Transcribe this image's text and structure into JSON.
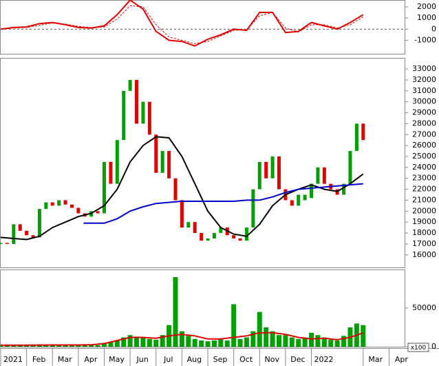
{
  "chart_data": [
    {
      "type": "line",
      "x": [
        0,
        0.5,
        1,
        1.5,
        2,
        2.5,
        3,
        3.5,
        4,
        4.5,
        5,
        5.5,
        6,
        6.5,
        7,
        7.5,
        8,
        8.5,
        9,
        9.5,
        10,
        10.5,
        11,
        11.5,
        12,
        12.5,
        13,
        13.5,
        14
      ],
      "series": [
        {
          "color": "#e00000",
          "dash": false,
          "values": [
            0,
            150,
            200,
            500,
            600,
            400,
            150,
            100,
            300,
            1300,
            2600,
            1800,
            -200,
            -1000,
            -1100,
            -1500,
            -900,
            -500,
            0,
            -100,
            1500,
            1500,
            -300,
            -200,
            600,
            300,
            0,
            600,
            1300
          ]
        },
        {
          "color": "#e00000",
          "dash": true,
          "values": [
            0,
            100,
            150,
            350,
            550,
            450,
            250,
            150,
            200,
            900,
            2100,
            2000,
            400,
            -700,
            -1000,
            -1300,
            -1100,
            -600,
            -100,
            -50,
            1200,
            1500,
            100,
            -250,
            400,
            400,
            100,
            400,
            1100
          ]
        }
      ],
      "xlim": [
        0,
        15.6
      ],
      "ylim": [
        -2200,
        2550
      ],
      "yticks": [
        -1000,
        0,
        1000,
        2000
      ],
      "zero_line": true
    },
    {
      "type": "candlestick",
      "x": [
        0,
        0.25,
        0.5,
        0.75,
        1,
        1.25,
        1.5,
        1.75,
        2,
        2.25,
        2.5,
        2.75,
        3,
        3.25,
        3.5,
        3.75,
        4,
        4.25,
        4.5,
        4.75,
        5,
        5.25,
        5.5,
        5.75,
        6,
        6.25,
        6.5,
        6.75,
        7,
        7.25,
        7.5,
        7.75,
        8,
        8.25,
        8.5,
        8.75,
        9,
        9.25,
        9.5,
        9.75,
        10,
        10.25,
        10.5,
        10.75,
        11,
        11.25,
        11.5,
        11.75,
        12,
        12.25,
        12.5,
        12.75,
        13,
        13.25,
        13.5,
        13.75,
        14
      ],
      "open": [
        17000,
        17100,
        17000,
        18800,
        18200,
        17800,
        17600,
        20200,
        20800,
        20500,
        21000,
        20600,
        20300,
        19800,
        19500,
        20000,
        19800,
        24500,
        22500,
        26500,
        31000,
        32000,
        28000,
        30000,
        27000,
        23500,
        25500,
        23000,
        21000,
        18500,
        19000,
        18000,
        17300,
        17500,
        18000,
        18500,
        17800,
        17500,
        17300,
        18500,
        22000,
        24500,
        23000,
        25000,
        22000,
        21000,
        20500,
        21000,
        21200,
        22500,
        24000,
        22500,
        22000,
        21500,
        22500,
        25500,
        28000
      ],
      "close": [
        17100,
        17000,
        18800,
        18200,
        17800,
        17600,
        20200,
        20800,
        20500,
        21000,
        20600,
        20300,
        19800,
        19500,
        20000,
        19800,
        24500,
        22500,
        26500,
        31000,
        32000,
        28000,
        30000,
        27000,
        23500,
        25500,
        23000,
        21000,
        18500,
        19000,
        18000,
        17300,
        17500,
        18000,
        18500,
        17800,
        17500,
        17300,
        18500,
        22000,
        24500,
        23000,
        25000,
        22000,
        21000,
        20500,
        21500,
        21500,
        22500,
        24000,
        22500,
        22000,
        21500,
        22500,
        25500,
        28000,
        26500
      ],
      "up_color": "#00a000",
      "down_color": "#e00000",
      "series": [
        {
          "color": "#000000",
          "x": [
            0,
            0.5,
            1,
            1.5,
            2,
            2.5,
            3,
            3.5,
            4,
            4.5,
            5,
            5.5,
            6,
            6.5,
            7,
            7.5,
            8,
            8.5,
            9,
            9.5,
            10,
            10.5,
            11,
            11.5,
            12,
            12.5,
            13,
            13.5,
            14
          ],
          "values": [
            17600,
            17500,
            17400,
            17700,
            18500,
            19000,
            19500,
            19800,
            20500,
            22000,
            24500,
            26000,
            26800,
            26700,
            25000,
            22500,
            20000,
            18500,
            17900,
            17700,
            18800,
            20500,
            21500,
            22000,
            22400,
            22000,
            21800,
            22500,
            23400
          ]
        },
        {
          "color": "#0000cc",
          "x": [
            3.2,
            4,
            4.5,
            5,
            5.5,
            6,
            6.5,
            7,
            7.5,
            8,
            8.5,
            9,
            9.5,
            10,
            10.5,
            11,
            11.5,
            12,
            12.5,
            13,
            14
          ],
          "values": [
            18900,
            18900,
            19300,
            20000,
            20400,
            20700,
            20800,
            20900,
            20900,
            20900,
            20900,
            20900,
            21000,
            21000,
            21300,
            21700,
            22000,
            22100,
            22200,
            22300,
            22500
          ]
        }
      ],
      "xlim": [
        0,
        15.6
      ],
      "ylim": [
        14850,
        33950
      ],
      "yticks": [
        16000,
        17000,
        18000,
        19000,
        20000,
        21000,
        22000,
        23000,
        24000,
        25000,
        26000,
        27000,
        28000,
        29000,
        30000,
        31000,
        32000,
        33000
      ]
    },
    {
      "type": "bar",
      "x": [
        0,
        0.25,
        0.5,
        0.75,
        1,
        1.25,
        1.5,
        1.75,
        2,
        2.25,
        2.5,
        2.75,
        3,
        3.25,
        3.5,
        3.75,
        4,
        4.25,
        4.5,
        4.75,
        5,
        5.25,
        5.5,
        5.75,
        6,
        6.25,
        6.5,
        6.75,
        7,
        7.25,
        7.5,
        7.75,
        8,
        8.25,
        8.5,
        8.75,
        9,
        9.25,
        9.5,
        9.75,
        10,
        10.25,
        10.5,
        10.75,
        11,
        11.25,
        11.5,
        11.75,
        12,
        12.25,
        12.5,
        12.75,
        13,
        13.25,
        13.5,
        13.75,
        14
      ],
      "values": [
        2000,
        2000,
        2500,
        2000,
        2000,
        2000,
        3000,
        2500,
        2500,
        2500,
        2000,
        2000,
        2000,
        2000,
        2000,
        2000,
        5000,
        6000,
        8000,
        12000,
        15000,
        13000,
        12000,
        10000,
        9000,
        15000,
        28000,
        90000,
        20000,
        14000,
        10000,
        8000,
        7000,
        8000,
        10000,
        8000,
        55000,
        10000,
        12000,
        20000,
        45000,
        25000,
        20000,
        15000,
        15000,
        12000,
        10000,
        12000,
        18000,
        15000,
        12000,
        9000,
        8000,
        14000,
        25000,
        30000,
        28000
      ],
      "color": "#00a000",
      "series": [
        {
          "color": "#e00000",
          "x": [
            0,
            0.5,
            1,
            1.5,
            2,
            2.5,
            3,
            3.5,
            4,
            4.5,
            5,
            5.5,
            6,
            6.5,
            7,
            7.5,
            8,
            8.5,
            9,
            9.5,
            10,
            10.5,
            11,
            11.5,
            12,
            12.5,
            13,
            13.5,
            14
          ],
          "values": [
            2000,
            2000,
            2000,
            2100,
            2200,
            2200,
            2200,
            2500,
            4000,
            8000,
            12000,
            12000,
            11000,
            14000,
            16000,
            14000,
            10000,
            10000,
            12000,
            14000,
            18000,
            18000,
            16000,
            12000,
            10000,
            11000,
            9000,
            12000,
            18000
          ]
        }
      ],
      "unit_label": "x100",
      "xlim": [
        0,
        15.6
      ],
      "ylim": [
        0,
        99000
      ],
      "yticks": [
        0,
        50000
      ],
      "xticks": [
        {
          "value": 0,
          "label": "2021"
        },
        {
          "value": 1,
          "label": "Feb"
        },
        {
          "value": 2,
          "label": "Mar"
        },
        {
          "value": 3,
          "label": "Apr"
        },
        {
          "value": 4,
          "label": "May"
        },
        {
          "value": 5,
          "label": "Jun"
        },
        {
          "value": 6,
          "label": "Jul"
        },
        {
          "value": 7,
          "label": "Aug"
        },
        {
          "value": 8,
          "label": "Sep"
        },
        {
          "value": 9,
          "label": "Oct"
        },
        {
          "value": 10,
          "label": "Nov"
        },
        {
          "value": 11,
          "label": "Dec"
        },
        {
          "value": 12,
          "label": "2022"
        },
        {
          "value": 14,
          "label": "Mar"
        },
        {
          "value": 15,
          "label": "Apr"
        }
      ]
    }
  ]
}
